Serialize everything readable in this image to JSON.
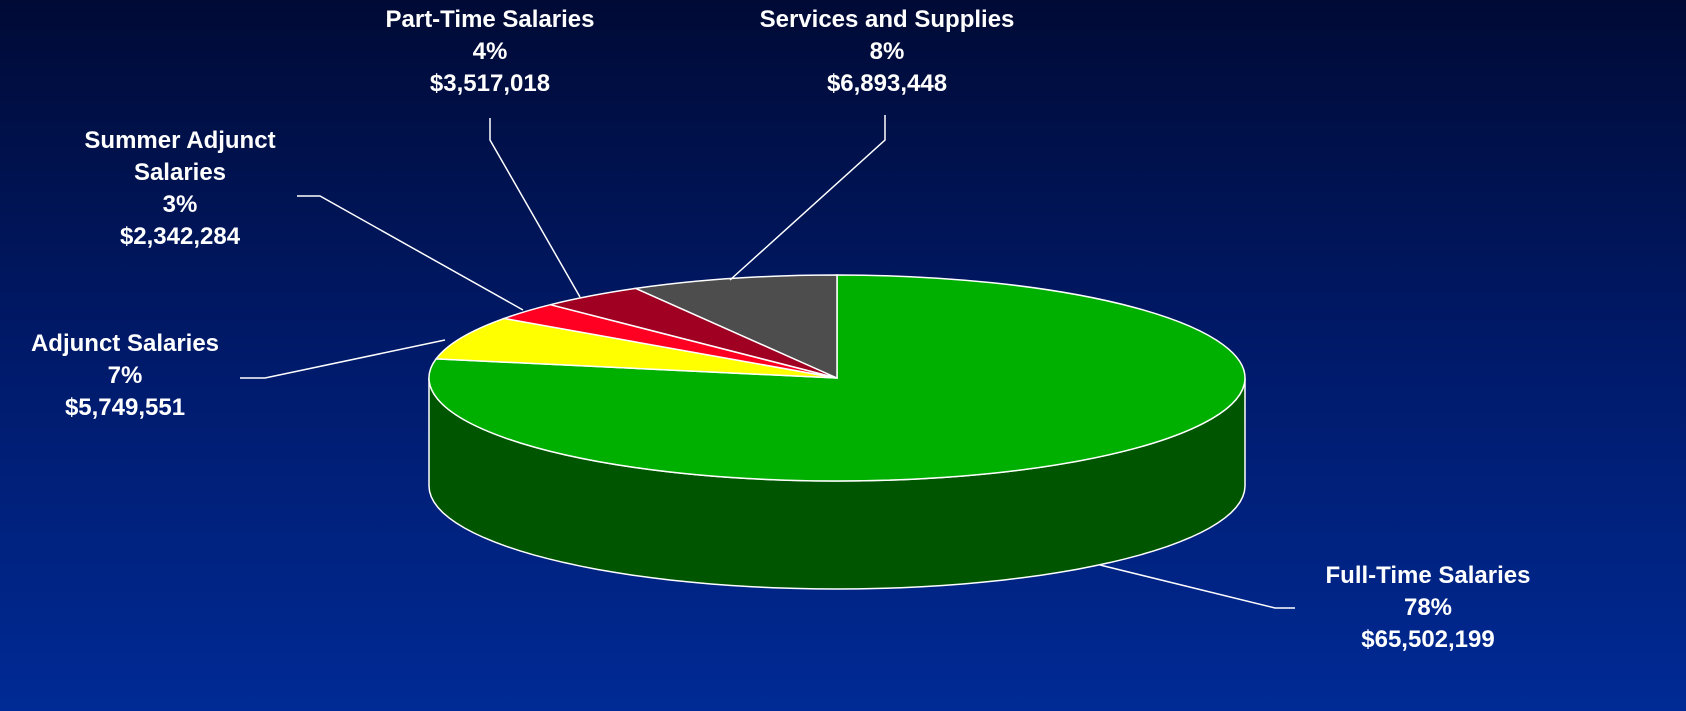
{
  "chart_data": {
    "type": "pie",
    "categories": [
      "Full-Time Salaries",
      "Adjunct Salaries",
      "Summer Adjunct Salaries",
      "Part-Time Salaries",
      "Services and Supplies"
    ],
    "values": [
      65502199,
      5749551,
      2342284,
      3517018,
      6893448
    ],
    "value_labels": [
      "$65,502,199",
      "$5,749,551",
      "$2,342,284",
      "$3,517,018",
      "$6,893,448"
    ],
    "percent_labels": [
      "78%",
      "7%",
      "3%",
      "4%",
      "8%"
    ],
    "colors": [
      "#00b000",
      "#ffff00",
      "#ff0022",
      "#a00022",
      "#4d4d4d"
    ],
    "side_colors": [
      "#005500",
      "#9a9a00",
      "#990014",
      "#600014",
      "#2e2e2e"
    ]
  }
}
